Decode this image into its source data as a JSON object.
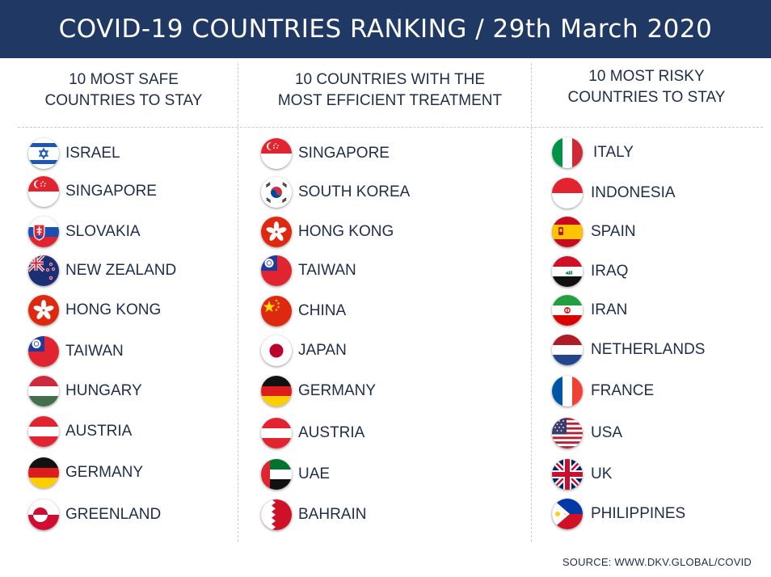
{
  "title": "COVID-19 COUNTRIES RANKING / 29th March 2020",
  "columns": [
    {
      "heading_line1": "10 MOST SAFE",
      "heading_line2": "COUNTRIES TO STAY",
      "countries": [
        {
          "name": "ISRAEL",
          "flag": "israel-flag-icon"
        },
        {
          "name": "SINGAPORE",
          "flag": "singapore-flag-icon"
        },
        {
          "name": "SLOVAKIA",
          "flag": "slovakia-flag-icon"
        },
        {
          "name": "NEW ZEALAND",
          "flag": "new-zealand-flag-icon"
        },
        {
          "name": "HONG KONG",
          "flag": "hong-kong-flag-icon"
        },
        {
          "name": "TAIWAN",
          "flag": "taiwan-flag-icon"
        },
        {
          "name": "HUNGARY",
          "flag": "hungary-flag-icon"
        },
        {
          "name": "AUSTRIA",
          "flag": "austria-flag-icon"
        },
        {
          "name": "GERMANY",
          "flag": "germany-flag-icon"
        },
        {
          "name": "GREENLAND",
          "flag": "greenland-flag-icon"
        }
      ]
    },
    {
      "heading_line1": "10 COUNTRIES WITH THE",
      "heading_line2": "MOST EFFICIENT TREATMENT",
      "countries": [
        {
          "name": "SINGAPORE",
          "flag": "singapore-flag-icon"
        },
        {
          "name": "SOUTH KOREA",
          "flag": "south-korea-flag-icon"
        },
        {
          "name": "HONG KONG",
          "flag": "hong-kong-flag-icon"
        },
        {
          "name": "TAIWAN",
          "flag": "taiwan-flag-icon"
        },
        {
          "name": "CHINA",
          "flag": "china-flag-icon"
        },
        {
          "name": "JAPAN",
          "flag": "japan-flag-icon"
        },
        {
          "name": "GERMANY",
          "flag": "germany-flag-icon"
        },
        {
          "name": "AUSTRIA",
          "flag": "austria-flag-icon"
        },
        {
          "name": "UAE",
          "flag": "uae-flag-icon"
        },
        {
          "name": "BAHRAIN",
          "flag": "bahrain-flag-icon"
        }
      ]
    },
    {
      "heading_line1": "10 MOST RISKY",
      "heading_line2": "COUNTRIES TO STAY",
      "countries": [
        {
          "name": "ITALY",
          "flag": "italy-flag-icon"
        },
        {
          "name": "INDONESIA",
          "flag": "indonesia-flag-icon"
        },
        {
          "name": "SPAIN",
          "flag": "spain-flag-icon"
        },
        {
          "name": "IRAQ",
          "flag": "iraq-flag-icon"
        },
        {
          "name": "IRAN",
          "flag": "iran-flag-icon"
        },
        {
          "name": "NETHERLANDS",
          "flag": "netherlands-flag-icon"
        },
        {
          "name": "FRANCE",
          "flag": "france-flag-icon"
        },
        {
          "name": "USA",
          "flag": "usa-flag-icon"
        },
        {
          "name": "UK",
          "flag": "uk-flag-icon"
        },
        {
          "name": "PHILIPPINES",
          "flag": "philippines-flag-icon"
        }
      ]
    }
  ],
  "source": "SOURCE: WWW.DKV.GLOBAL/COVID",
  "colors": {
    "header_bg": "#1f3864",
    "text": "#1f2d4a"
  }
}
